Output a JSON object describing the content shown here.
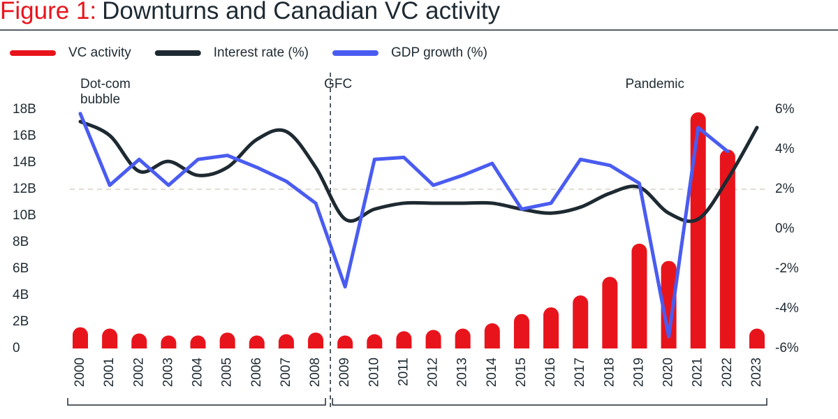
{
  "chart_data": {
    "type": "bar",
    "figure_label": "Figure 1:",
    "title": "Downturns and Canadian VC activity",
    "categories": [
      "2000",
      "2001",
      "2002",
      "2003",
      "2004",
      "2005",
      "2006",
      "2007",
      "2008",
      "2009",
      "2010",
      "2011",
      "2012",
      "2013",
      "2014",
      "2015",
      "2016",
      "2017",
      "2018",
      "2019",
      "2020",
      "2021",
      "2022",
      "2023"
    ],
    "series": [
      {
        "name": "VC activity",
        "type": "bar",
        "color": "#e8141c",
        "values": [
          1.6,
          1.5,
          1.1,
          0.8,
          0.8,
          1.2,
          0.8,
          1.0,
          1.2,
          0.8,
          1.0,
          1.3,
          1.4,
          1.5,
          1.9,
          2.6,
          3.1,
          4.0,
          5.4,
          7.9,
          6.6,
          17.8,
          15.0,
          1.5
        ]
      },
      {
        "name": "Interest rate (%)",
        "type": "line",
        "smooth": true,
        "axis": "y2",
        "color": "#1e2a32",
        "values": [
          5.4,
          4.7,
          2.9,
          3.4,
          2.7,
          3.1,
          4.5,
          4.9,
          3.1,
          0.5,
          1.0,
          1.3,
          1.3,
          1.3,
          1.3,
          1.0,
          0.8,
          1.1,
          1.8,
          2.1,
          0.8,
          0.5,
          2.5,
          5.1
        ]
      },
      {
        "name": "GDP growth (%)",
        "type": "line",
        "smooth": false,
        "axis": "y2",
        "color": "#4a5cf0",
        "values": [
          5.8,
          2.2,
          3.5,
          2.2,
          3.5,
          3.7,
          3.1,
          2.4,
          1.3,
          -2.9,
          3.5,
          3.6,
          2.2,
          2.7,
          3.3,
          1.0,
          1.3,
          3.5,
          3.2,
          2.3,
          -5.4,
          5.1,
          3.9,
          null
        ]
      }
    ],
    "ylim": [
      0,
      18
    ],
    "yticks": [
      0,
      {
        "value": 2,
        "label": "2B"
      },
      {
        "value": 4,
        "label": "4B"
      },
      {
        "value": 6,
        "label": "6B"
      },
      {
        "value": 8,
        "label": "8B"
      },
      {
        "value": 10,
        "label": "10B"
      },
      {
        "value": 12,
        "label": "12B"
      },
      {
        "value": 14,
        "label": "14B"
      },
      {
        "value": 16,
        "label": "16B"
      },
      {
        "value": 18,
        "label": "18B"
      }
    ],
    "y2lim": [
      -6,
      6
    ],
    "y2ticks": [
      {
        "value": -6,
        "label": "-6%"
      },
      {
        "value": -4,
        "label": "-4%"
      },
      {
        "value": -2,
        "label": "-2%"
      },
      {
        "value": 0,
        "label": "0%"
      },
      {
        "value": 2,
        "label": "2%"
      },
      {
        "value": 4,
        "label": "4%"
      },
      {
        "value": 6,
        "label": "6%"
      }
    ],
    "reference_line_y2": 2,
    "annotations": [
      {
        "lines": [
          "Dot-com",
          "bubble"
        ],
        "category": 0
      },
      {
        "lines": [
          "GFC"
        ],
        "category": 9
      },
      {
        "lines": [
          "Pandemic"
        ],
        "category": 19
      }
    ],
    "divider_after_category": 8,
    "legend": "top-left"
  }
}
